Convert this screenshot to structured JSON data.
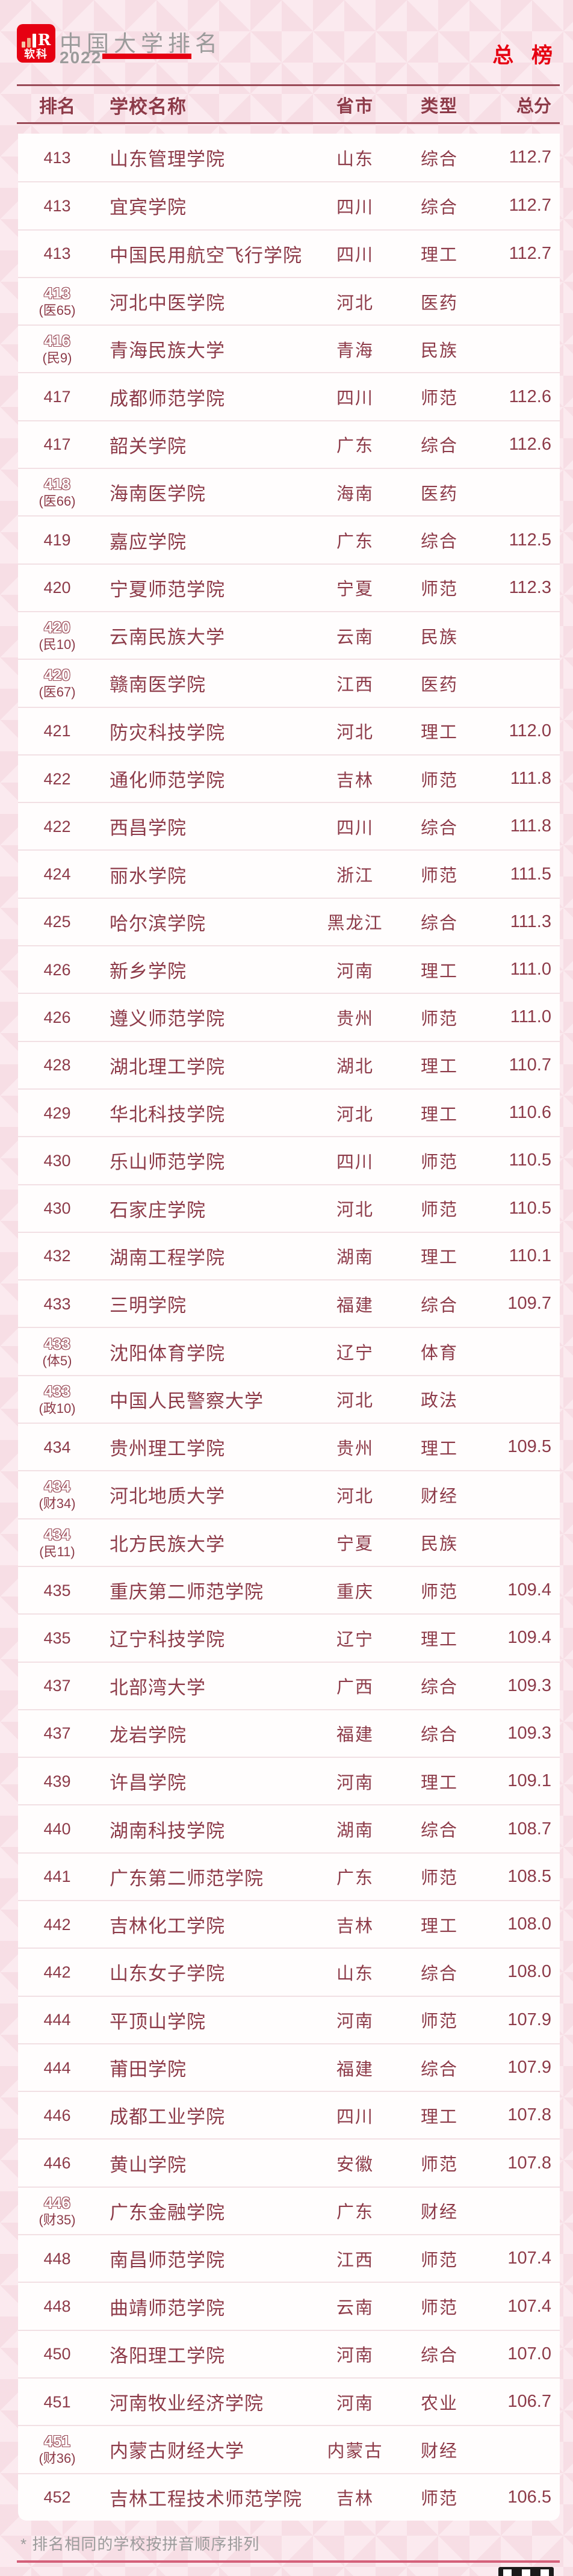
{
  "header": {
    "logo_text": "软科",
    "logo_r": "R",
    "title": "中国大学排名",
    "year": "2022",
    "board_label": "总 榜"
  },
  "footnote": "* 排名相同的学校按拼音顺序排列",
  "colors": {
    "brand_red": "#e60012",
    "text_maroon": "#8d3b49",
    "rule_maroon": "#9a4a57",
    "footer_line_pink": "#d4607a",
    "background_pink": "#f7dee5",
    "title_gray": "#9b9b9b"
  },
  "chart_data": {
    "type": "table",
    "title": "中国大学排名 2022 总榜",
    "columns": [
      "排名",
      "学校名称",
      "省市",
      "类型",
      "总分"
    ],
    "rows": [
      {
        "rank": "413",
        "sub_rank": "",
        "school": "山东管理学院",
        "province": "山东",
        "category": "综合",
        "score": "112.7"
      },
      {
        "rank": "413",
        "sub_rank": "",
        "school": "宜宾学院",
        "province": "四川",
        "category": "综合",
        "score": "112.7"
      },
      {
        "rank": "413",
        "sub_rank": "",
        "school": "中国民用航空飞行学院",
        "province": "四川",
        "category": "理工",
        "score": "112.7"
      },
      {
        "rank": "413",
        "sub_rank": "(医65)",
        "school": "河北中医学院",
        "province": "河北",
        "category": "医药",
        "score": ""
      },
      {
        "rank": "416",
        "sub_rank": "(民9)",
        "school": "青海民族大学",
        "province": "青海",
        "category": "民族",
        "score": ""
      },
      {
        "rank": "417",
        "sub_rank": "",
        "school": "成都师范学院",
        "province": "四川",
        "category": "师范",
        "score": "112.6"
      },
      {
        "rank": "417",
        "sub_rank": "",
        "school": "韶关学院",
        "province": "广东",
        "category": "综合",
        "score": "112.6"
      },
      {
        "rank": "418",
        "sub_rank": "(医66)",
        "school": "海南医学院",
        "province": "海南",
        "category": "医药",
        "score": ""
      },
      {
        "rank": "419",
        "sub_rank": "",
        "school": "嘉应学院",
        "province": "广东",
        "category": "综合",
        "score": "112.5"
      },
      {
        "rank": "420",
        "sub_rank": "",
        "school": "宁夏师范学院",
        "province": "宁夏",
        "category": "师范",
        "score": "112.3"
      },
      {
        "rank": "420",
        "sub_rank": "(民10)",
        "school": "云南民族大学",
        "province": "云南",
        "category": "民族",
        "score": ""
      },
      {
        "rank": "420",
        "sub_rank": "(医67)",
        "school": "赣南医学院",
        "province": "江西",
        "category": "医药",
        "score": ""
      },
      {
        "rank": "421",
        "sub_rank": "",
        "school": "防灾科技学院",
        "province": "河北",
        "category": "理工",
        "score": "112.0"
      },
      {
        "rank": "422",
        "sub_rank": "",
        "school": "通化师范学院",
        "province": "吉林",
        "category": "师范",
        "score": "111.8"
      },
      {
        "rank": "422",
        "sub_rank": "",
        "school": "西昌学院",
        "province": "四川",
        "category": "综合",
        "score": "111.8"
      },
      {
        "rank": "424",
        "sub_rank": "",
        "school": "丽水学院",
        "province": "浙江",
        "category": "师范",
        "score": "111.5"
      },
      {
        "rank": "425",
        "sub_rank": "",
        "school": "哈尔滨学院",
        "province": "黑龙江",
        "category": "综合",
        "score": "111.3"
      },
      {
        "rank": "426",
        "sub_rank": "",
        "school": "新乡学院",
        "province": "河南",
        "category": "理工",
        "score": "111.0"
      },
      {
        "rank": "426",
        "sub_rank": "",
        "school": "遵义师范学院",
        "province": "贵州",
        "category": "师范",
        "score": "111.0"
      },
      {
        "rank": "428",
        "sub_rank": "",
        "school": "湖北理工学院",
        "province": "湖北",
        "category": "理工",
        "score": "110.7"
      },
      {
        "rank": "429",
        "sub_rank": "",
        "school": "华北科技学院",
        "province": "河北",
        "category": "理工",
        "score": "110.6"
      },
      {
        "rank": "430",
        "sub_rank": "",
        "school": "乐山师范学院",
        "province": "四川",
        "category": "师范",
        "score": "110.5"
      },
      {
        "rank": "430",
        "sub_rank": "",
        "school": "石家庄学院",
        "province": "河北",
        "category": "师范",
        "score": "110.5"
      },
      {
        "rank": "432",
        "sub_rank": "",
        "school": "湖南工程学院",
        "province": "湖南",
        "category": "理工",
        "score": "110.1"
      },
      {
        "rank": "433",
        "sub_rank": "",
        "school": "三明学院",
        "province": "福建",
        "category": "综合",
        "score": "109.7"
      },
      {
        "rank": "433",
        "sub_rank": "(体5)",
        "school": "沈阳体育学院",
        "province": "辽宁",
        "category": "体育",
        "score": ""
      },
      {
        "rank": "433",
        "sub_rank": "(政10)",
        "school": "中国人民警察大学",
        "province": "河北",
        "category": "政法",
        "score": ""
      },
      {
        "rank": "434",
        "sub_rank": "",
        "school": "贵州理工学院",
        "province": "贵州",
        "category": "理工",
        "score": "109.5"
      },
      {
        "rank": "434",
        "sub_rank": "(财34)",
        "school": "河北地质大学",
        "province": "河北",
        "category": "财经",
        "score": ""
      },
      {
        "rank": "434",
        "sub_rank": "(民11)",
        "school": "北方民族大学",
        "province": "宁夏",
        "category": "民族",
        "score": ""
      },
      {
        "rank": "435",
        "sub_rank": "",
        "school": "重庆第二师范学院",
        "province": "重庆",
        "category": "师范",
        "score": "109.4"
      },
      {
        "rank": "435",
        "sub_rank": "",
        "school": "辽宁科技学院",
        "province": "辽宁",
        "category": "理工",
        "score": "109.4"
      },
      {
        "rank": "437",
        "sub_rank": "",
        "school": "北部湾大学",
        "province": "广西",
        "category": "综合",
        "score": "109.3"
      },
      {
        "rank": "437",
        "sub_rank": "",
        "school": "龙岩学院",
        "province": "福建",
        "category": "综合",
        "score": "109.3"
      },
      {
        "rank": "439",
        "sub_rank": "",
        "school": "许昌学院",
        "province": "河南",
        "category": "理工",
        "score": "109.1"
      },
      {
        "rank": "440",
        "sub_rank": "",
        "school": "湖南科技学院",
        "province": "湖南",
        "category": "综合",
        "score": "108.7"
      },
      {
        "rank": "441",
        "sub_rank": "",
        "school": "广东第二师范学院",
        "province": "广东",
        "category": "师范",
        "score": "108.5"
      },
      {
        "rank": "442",
        "sub_rank": "",
        "school": "吉林化工学院",
        "province": "吉林",
        "category": "理工",
        "score": "108.0"
      },
      {
        "rank": "442",
        "sub_rank": "",
        "school": "山东女子学院",
        "province": "山东",
        "category": "综合",
        "score": "108.0"
      },
      {
        "rank": "444",
        "sub_rank": "",
        "school": "平顶山学院",
        "province": "河南",
        "category": "师范",
        "score": "107.9"
      },
      {
        "rank": "444",
        "sub_rank": "",
        "school": "莆田学院",
        "province": "福建",
        "category": "综合",
        "score": "107.9"
      },
      {
        "rank": "446",
        "sub_rank": "",
        "school": "成都工业学院",
        "province": "四川",
        "category": "理工",
        "score": "107.8"
      },
      {
        "rank": "446",
        "sub_rank": "",
        "school": "黄山学院",
        "province": "安徽",
        "category": "师范",
        "score": "107.8"
      },
      {
        "rank": "446",
        "sub_rank": "(财35)",
        "school": "广东金融学院",
        "province": "广东",
        "category": "财经",
        "score": ""
      },
      {
        "rank": "448",
        "sub_rank": "",
        "school": "南昌师范学院",
        "province": "江西",
        "category": "师范",
        "score": "107.4"
      },
      {
        "rank": "448",
        "sub_rank": "",
        "school": "曲靖师范学院",
        "province": "云南",
        "category": "师范",
        "score": "107.4"
      },
      {
        "rank": "450",
        "sub_rank": "",
        "school": "洛阳理工学院",
        "province": "河南",
        "category": "综合",
        "score": "107.0"
      },
      {
        "rank": "451",
        "sub_rank": "",
        "school": "河南牧业经济学院",
        "province": "河南",
        "category": "农业",
        "score": "106.7"
      },
      {
        "rank": "451",
        "sub_rank": "(财36)",
        "school": "内蒙古财经大学",
        "province": "内蒙古",
        "category": "财经",
        "score": ""
      },
      {
        "rank": "452",
        "sub_rank": "",
        "school": "吉林工程技术师范学院",
        "province": "吉林",
        "category": "师范",
        "score": "106.5"
      }
    ]
  }
}
